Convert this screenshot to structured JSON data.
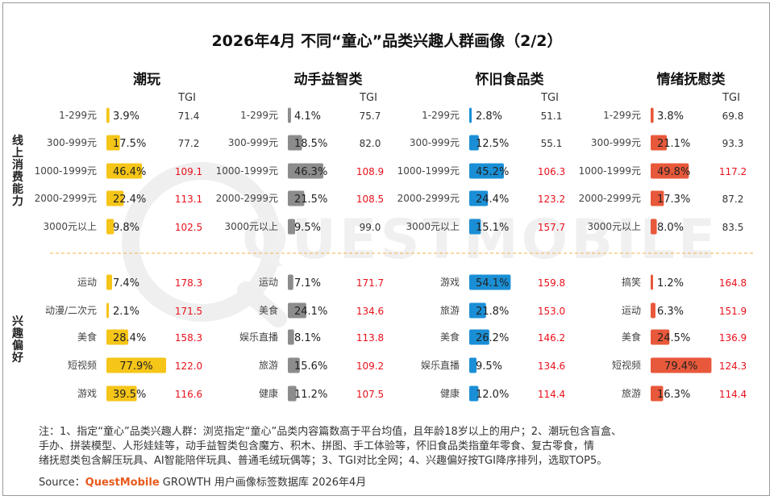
{
  "title": "2026年4月 不同“童心”品类兴趣人群画像（2/2）",
  "row_groups": [
    {
      "label": "线上消费能力"
    },
    {
      "label": "兴趣偏好"
    }
  ],
  "notes": {
    "lines": [
      "注：1、指定“童心”品类兴趣人群：浏览指定“童心”品类内容篇数高于平台均值，且年龄18岁以上的用户；2、潮玩包含盲盒、",
      "手办、拼装模型、人形娃娃等，动手益智类包含魔方、积木、拼图、手工体验等，怀旧食品类指童年零食、复古零食，情",
      "绪抚慰类包含解压玩具、AI智能陪伴玩具、普通毛绒玩偶等；3、TGI对比全网；4、兴趣偏好按TGI降序排列，选取TOP5。"
    ],
    "source_prefix": "Source：",
    "source_brand": "QuestMobile",
    "source_suffix": " GROWTH 用户画像标签数据库 2026年4月"
  },
  "watermark": "QUESTMOBILE",
  "chart_data": {
    "type": "bar",
    "tgi_label": "TGI",
    "tgi_highlight_threshold": 100,
    "colors": {
      "highlight": "#e8111b",
      "normal": "#333333"
    },
    "panels": [
      {
        "name": "潮玩",
        "color": "#f5c518",
        "consumption": [
          {
            "label": "1-299元",
            "pct": 3.9,
            "pct_text": "3.9%",
            "tgi": "71.4"
          },
          {
            "label": "300-999元",
            "pct": 17.5,
            "pct_text": "17.5%",
            "tgi": "77.2"
          },
          {
            "label": "1000-1999元",
            "pct": 46.4,
            "pct_text": "46.4%",
            "tgi": "109.1"
          },
          {
            "label": "2000-2999元",
            "pct": 22.4,
            "pct_text": "22.4%",
            "tgi": "113.1"
          },
          {
            "label": "3000元以上",
            "pct": 9.8,
            "pct_text": "9.8%",
            "tgi": "102.5"
          }
        ],
        "interests": [
          {
            "label": "运动",
            "pct": 7.4,
            "pct_text": "7.4%",
            "tgi": "178.3"
          },
          {
            "label": "动漫/二次元",
            "pct": 2.1,
            "pct_text": "2.1%",
            "tgi": "171.5"
          },
          {
            "label": "美食",
            "pct": 28.4,
            "pct_text": "28.4%",
            "tgi": "158.3"
          },
          {
            "label": "短视频",
            "pct": 77.9,
            "pct_text": "77.9%",
            "tgi": "122.0"
          },
          {
            "label": "游戏",
            "pct": 39.5,
            "pct_text": "39.5%",
            "tgi": "116.6"
          }
        ]
      },
      {
        "name": "动手益智类",
        "color": "#8c8c8c",
        "consumption": [
          {
            "label": "1-299元",
            "pct": 4.1,
            "pct_text": "4.1%",
            "tgi": "75.7"
          },
          {
            "label": "300-999元",
            "pct": 18.5,
            "pct_text": "18.5%",
            "tgi": "82.0"
          },
          {
            "label": "1000-1999元",
            "pct": 46.3,
            "pct_text": "46.3%",
            "tgi": "108.9"
          },
          {
            "label": "2000-2999元",
            "pct": 21.5,
            "pct_text": "21.5%",
            "tgi": "108.5"
          },
          {
            "label": "3000元以上",
            "pct": 9.5,
            "pct_text": "9.5%",
            "tgi": "99.0"
          }
        ],
        "interests": [
          {
            "label": "运动",
            "pct": 7.1,
            "pct_text": "7.1%",
            "tgi": "171.7"
          },
          {
            "label": "美食",
            "pct": 24.1,
            "pct_text": "24.1%",
            "tgi": "134.6"
          },
          {
            "label": "娱乐直播",
            "pct": 8.1,
            "pct_text": "8.1%",
            "tgi": "113.8"
          },
          {
            "label": "旅游",
            "pct": 15.6,
            "pct_text": "15.6%",
            "tgi": "109.2"
          },
          {
            "label": "健康",
            "pct": 11.2,
            "pct_text": "11.2%",
            "tgi": "107.5"
          }
        ]
      },
      {
        "name": "怀旧食品类",
        "color": "#1a8fd6",
        "consumption": [
          {
            "label": "1-299元",
            "pct": 2.8,
            "pct_text": "2.8%",
            "tgi": "51.1"
          },
          {
            "label": "300-999元",
            "pct": 12.5,
            "pct_text": "12.5%",
            "tgi": "55.1"
          },
          {
            "label": "1000-1999元",
            "pct": 45.2,
            "pct_text": "45.2%",
            "tgi": "106.3"
          },
          {
            "label": "2000-2999元",
            "pct": 24.4,
            "pct_text": "24.4%",
            "tgi": "123.2"
          },
          {
            "label": "3000元以上",
            "pct": 15.1,
            "pct_text": "15.1%",
            "tgi": "157.7"
          }
        ],
        "interests": [
          {
            "label": "游戏",
            "pct": 54.1,
            "pct_text": "54.1%",
            "tgi": "159.8"
          },
          {
            "label": "旅游",
            "pct": 21.8,
            "pct_text": "21.8%",
            "tgi": "153.0"
          },
          {
            "label": "美食",
            "pct": 26.2,
            "pct_text": "26.2%",
            "tgi": "146.2"
          },
          {
            "label": "娱乐直播",
            "pct": 9.5,
            "pct_text": "9.5%",
            "tgi": "134.6"
          },
          {
            "label": "健康",
            "pct": 12.0,
            "pct_text": "12.0%",
            "tgi": "114.4"
          }
        ]
      },
      {
        "name": "情绪抚慰类",
        "color": "#e8583a",
        "consumption": [
          {
            "label": "1-299元",
            "pct": 3.8,
            "pct_text": "3.8%",
            "tgi": "69.8"
          },
          {
            "label": "300-999元",
            "pct": 21.1,
            "pct_text": "21.1%",
            "tgi": "93.3"
          },
          {
            "label": "1000-1999元",
            "pct": 49.8,
            "pct_text": "49.8%",
            "tgi": "117.2"
          },
          {
            "label": "2000-2999元",
            "pct": 17.3,
            "pct_text": "17.3%",
            "tgi": "87.2"
          },
          {
            "label": "3000元以上",
            "pct": 8.0,
            "pct_text": "8.0%",
            "tgi": "83.5"
          }
        ],
        "interests": [
          {
            "label": "搞笑",
            "pct": 1.2,
            "pct_text": "1.2%",
            "tgi": "164.8"
          },
          {
            "label": "运动",
            "pct": 6.3,
            "pct_text": "6.3%",
            "tgi": "151.9"
          },
          {
            "label": "美食",
            "pct": 24.5,
            "pct_text": "24.5%",
            "tgi": "136.9"
          },
          {
            "label": "短视频",
            "pct": 79.4,
            "pct_text": "79.4%",
            "tgi": "124.3"
          },
          {
            "label": "旅游",
            "pct": 16.3,
            "pct_text": "16.3%",
            "tgi": "114.4"
          }
        ]
      }
    ]
  }
}
